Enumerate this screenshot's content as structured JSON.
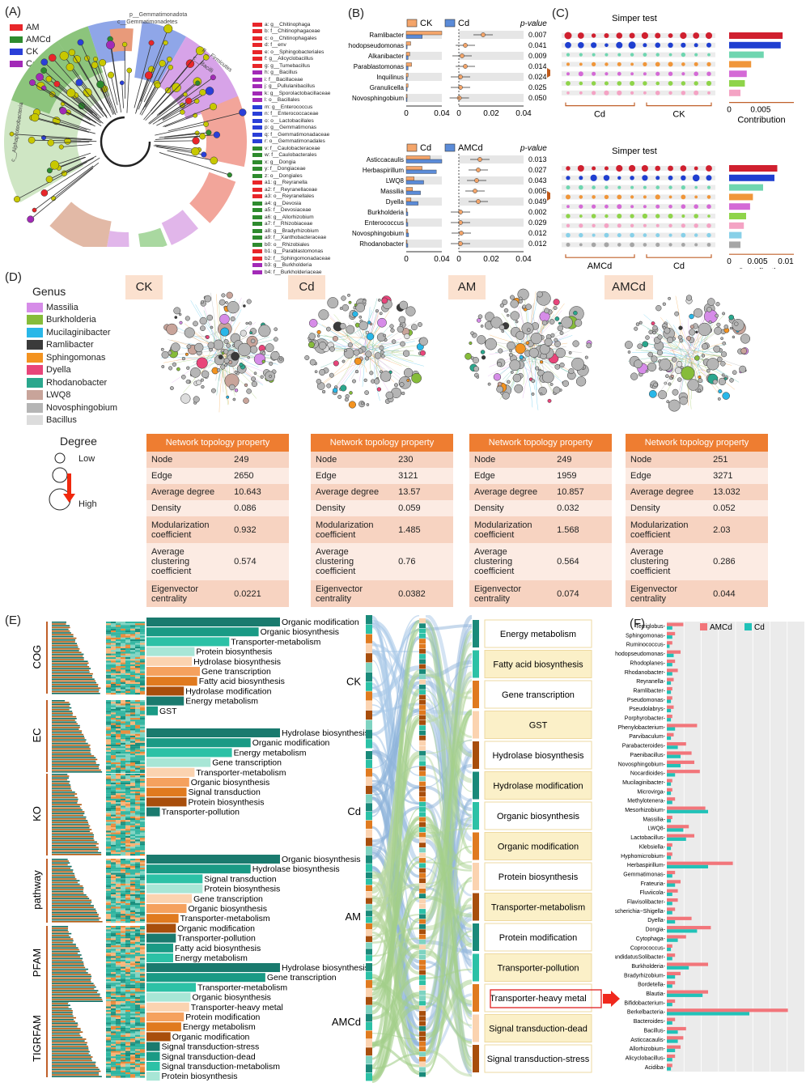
{
  "panels": {
    "A": "(A)",
    "B": "(B)",
    "C": "(C)",
    "D": "(D)",
    "E": "(E)",
    "F": "(F)"
  },
  "colors": {
    "AM": "#e8262a",
    "AMCd": "#2e8b2e",
    "CK": "#2a3fd8",
    "Cd": "#a22ab7",
    "orange": "#ee7d31",
    "blue": "#5b8bd8",
    "teal": "#1a8a7a",
    "dark_orange": "#b34c0e"
  },
  "panelA": {
    "legend": [
      {
        "label": "AM",
        "color": "#e8262a"
      },
      {
        "label": "AMCd",
        "color": "#2e8b2e"
      },
      {
        "label": "CK",
        "color": "#2a3fd8"
      },
      {
        "label": "Cd",
        "color": "#a22ab7"
      }
    ],
    "ring_labels": [
      "p__Gemmatimonadota",
      "c__Gemmatimonadetes",
      "p__Firmicutes",
      "c__Bacilli",
      "c__Alphaproteobacteria"
    ],
    "taxa": [
      {
        "t": "a: g__Chitinophaga",
        "c": "#e8262a"
      },
      {
        "t": "b: f__Chitinophagaceae",
        "c": "#e8262a"
      },
      {
        "t": "c: o__Chitinophagales",
        "c": "#e8262a"
      },
      {
        "t": "d: f__env",
        "c": "#e8262a"
      },
      {
        "t": "e: o__Sphingobacteriales",
        "c": "#e8262a"
      },
      {
        "t": "f: g__Alicyclobacillus",
        "c": "#e8262a"
      },
      {
        "t": "g: g__Tumebacillus",
        "c": "#e8262a"
      },
      {
        "t": "h: g__Bacillus",
        "c": "#a22ab7"
      },
      {
        "t": "i: f__Bacillaceae",
        "c": "#a22ab7"
      },
      {
        "t": "j: g__Pullulanibacillus",
        "c": "#a22ab7"
      },
      {
        "t": "k: g__Sporolactobacillaceae",
        "c": "#a22ab7"
      },
      {
        "t": "l: o__Bacillales",
        "c": "#a22ab7"
      },
      {
        "t": "m: g__Enterococcus",
        "c": "#2a3fd8"
      },
      {
        "t": "n: f__Enterococcaceae",
        "c": "#2a3fd8"
      },
      {
        "t": "o: o__Lactobacillales",
        "c": "#2a3fd8"
      },
      {
        "t": "p: g__Gemmatimonas",
        "c": "#2a3fd8"
      },
      {
        "t": "q: f__Gemmatimonadaceae",
        "c": "#2a3fd8"
      },
      {
        "t": "r: o__Gemmatimonadales",
        "c": "#2a3fd8"
      },
      {
        "t": "v: f__Caulobacteraceae",
        "c": "#2e8b2e"
      },
      {
        "t": "w: f__Caulobacterales",
        "c": "#2e8b2e"
      },
      {
        "t": "x: g__Dongia",
        "c": "#2e8b2e"
      },
      {
        "t": "y: f__Dongiaceae",
        "c": "#2e8b2e"
      },
      {
        "t": "z: o__Dongiales",
        "c": "#2e8b2e"
      },
      {
        "t": "a1: g__Reyranella",
        "c": "#e8262a"
      },
      {
        "t": "a2: f__Reyranellaceae",
        "c": "#e8262a"
      },
      {
        "t": "a3: o__Reyranellales",
        "c": "#e8262a"
      },
      {
        "t": "a4: g__Devosia",
        "c": "#2e8b2e"
      },
      {
        "t": "a5: f__Devosiaceae",
        "c": "#2e8b2e"
      },
      {
        "t": "a6: g__Allorhizobium",
        "c": "#2e8b2e"
      },
      {
        "t": "a7: f__Rhizobiaceae",
        "c": "#2e8b2e"
      },
      {
        "t": "a8: g__Bradyrhizobium",
        "c": "#2e8b2e"
      },
      {
        "t": "a9: f__Xanthobacteraceae",
        "c": "#2e8b2e"
      },
      {
        "t": "b0: o__Rhizobiales",
        "c": "#2e8b2e"
      },
      {
        "t": "b1: g__Parablastomonas",
        "c": "#e8262a"
      },
      {
        "t": "b2: f__Sphingomonadaceae",
        "c": "#e8262a"
      },
      {
        "t": "b3: g__Burkholderia",
        "c": "#a22ab7"
      },
      {
        "t": "b4: f__Burkholderiaceae",
        "c": "#a22ab7"
      }
    ]
  },
  "panelB": {
    "top": {
      "legend": [
        "CK",
        "Cd"
      ],
      "pvalue_header": "p-value",
      "genera": [
        "Ramlibacter",
        "Rhodopseudomonas",
        "Alkanibacter",
        "Parablastomonas",
        "Inquilinus",
        "Granulicella",
        "Novosphingobium"
      ],
      "bars1": [
        0.04,
        0.005,
        0.004,
        0.006,
        0.002,
        0.002,
        0.001
      ],
      "bars2": [
        0.018,
        0.001,
        0.002,
        0.002,
        0.001,
        0.001,
        0.0008
      ],
      "diff": [
        0.015,
        0.004,
        0.002,
        0.004,
        0.001,
        0.001,
        0.0003
      ],
      "pvalues": [
        "0.007",
        "0.041",
        "0.009",
        "0.014",
        "0.024",
        "0.025",
        "0.050"
      ],
      "xticks_left": [
        "0",
        "0.04"
      ],
      "xticks_right": [
        "0",
        "0.02",
        "0.04"
      ]
    },
    "bottom": {
      "legend": [
        "Cd",
        "AMCd"
      ],
      "pvalue_header": "p-value",
      "genera": [
        "Asticcacaulis",
        "Herbaspirillum",
        "LWQ8",
        "Massilia",
        "Dyella",
        "Burkholderia",
        "Enterococcus",
        "Novosphingobium",
        "Rhodanobacter"
      ],
      "bars1": [
        0.03,
        0.02,
        0.01,
        0.008,
        0.006,
        0.001,
        0.001,
        0.002,
        0.001
      ],
      "bars2": [
        0.045,
        0.038,
        0.022,
        0.018,
        0.015,
        0.002,
        0.002,
        0.003,
        0.002
      ],
      "diff": [
        0.013,
        0.012,
        0.011,
        0.01,
        0.012,
        0.001,
        0.001,
        0.0015,
        0.001
      ],
      "pvalues": [
        "0.013",
        "0.027",
        "0.043",
        "0.005",
        "0.049",
        "0.002",
        "0.029",
        "0.012",
        "0.012"
      ],
      "xticks_left": [
        "0",
        "0.04"
      ],
      "xticks_right": [
        "0",
        "0.02",
        "0.04"
      ]
    }
  },
  "panelC": {
    "top": {
      "title": "Simper test",
      "groups": [
        "Cd",
        "CK"
      ],
      "xlabel": "Contribution",
      "xticks": [
        "0",
        "0.005"
      ],
      "bars": [
        0.0085,
        0.0082,
        0.0055,
        0.0035,
        0.0028,
        0.0025,
        0.0018
      ],
      "colors": [
        "#d0202f",
        "#1f3fd0",
        "#6fd6b0",
        "#f0963a",
        "#d46ad6",
        "#8fd44a",
        "#f4a3c4"
      ]
    },
    "bottom": {
      "title": "Simper test",
      "groups": [
        "AMCd",
        "Cd"
      ],
      "xlabel": "Contribution",
      "xticks": [
        "0",
        "0.005",
        "0.01"
      ],
      "bars": [
        0.0085,
        0.008,
        0.006,
        0.0042,
        0.0037,
        0.003,
        0.0026,
        0.0022,
        0.002
      ],
      "colors": [
        "#d0202f",
        "#1f3fd0",
        "#6fd6b0",
        "#f0963a",
        "#d46ad6",
        "#8fd44a",
        "#f4a3c4",
        "#88d0e8",
        "#a6a6a6"
      ]
    }
  },
  "panelD": {
    "genus_title": "Genus",
    "genus_legend": [
      {
        "label": "Massilia",
        "color": "#d68ce8"
      },
      {
        "label": "Burkholderia",
        "color": "#86bc3a"
      },
      {
        "label": "Mucilaginibacter",
        "color": "#29b7e8"
      },
      {
        "label": "Ramlibacter",
        "color": "#3a3a3a"
      },
      {
        "label": "Sphingomonas",
        "color": "#f39320"
      },
      {
        "label": "Dyella",
        "color": "#e8457a"
      },
      {
        "label": "Rhodanobacter",
        "color": "#2aa78d"
      },
      {
        "label": "LWQ8",
        "color": "#c8a49a"
      },
      {
        "label": "Novosphingobium",
        "color": "#b5b5b5"
      },
      {
        "label": "Bacillus",
        "color": "#dcdcdc"
      }
    ],
    "degree_title": "Degree",
    "degree_low": "Low",
    "degree_high": "High",
    "networks": [
      "CK",
      "Cd",
      "AM",
      "AMCd"
    ],
    "table_header": "Network topology property",
    "row_labels": [
      "Node",
      "Edge",
      "Average degree",
      "Density",
      "Modularization coefficient",
      "Average clustering coefficient",
      "Eigenvector centrality"
    ],
    "values": [
      [
        "249",
        "2650",
        "10.643",
        "0.086",
        "0.932",
        "0.574",
        "0.0221"
      ],
      [
        "230",
        "3121",
        "13.57",
        "0.059",
        "1.485",
        "0.76",
        "0.0382"
      ],
      [
        "249",
        "1959",
        "10.857",
        "0.032",
        "1.568",
        "0.564",
        "0.074"
      ],
      [
        "251",
        "3271",
        "13.032",
        "0.052",
        "2.03",
        "0.286",
        "0.044"
      ]
    ]
  },
  "panelE": {
    "databases": [
      "COG",
      "EC",
      "KO",
      "pathway",
      "PFAM",
      "TIGRFAM"
    ],
    "groups": [
      "CK",
      "Cd",
      "AM",
      "AMCd"
    ],
    "bar_groups": [
      {
        "items": [
          {
            "l": "Organic modification",
            "v": 1.0,
            "c": "#1a7a6e"
          },
          {
            "l": "Organic biosynthesis",
            "v": 0.84,
            "c": "#1a9a85"
          },
          {
            "l": "Transporter-metabolism",
            "v": 0.62,
            "c": "#2cc1a6"
          },
          {
            "l": "Protein biosynthesis",
            "v": 0.36,
            "c": "#a8e6d6"
          },
          {
            "l": "Hydrolase biosynthesis",
            "v": 0.34,
            "c": "#fbd3b0"
          },
          {
            "l": "Gene transcription",
            "v": 0.4,
            "c": "#f5a15e"
          },
          {
            "l": "Fatty acid biosynthesis",
            "v": 0.38,
            "c": "#e07a1f"
          },
          {
            "l": "Hydrolase modification",
            "v": 0.28,
            "c": "#a84e0c"
          },
          {
            "l": "Energy metabolism",
            "v": 0.28,
            "c": "#1a7a6e"
          },
          {
            "l": "GST",
            "v": 0.08,
            "c": "#1a9a85"
          }
        ]
      },
      {
        "items": [
          {
            "l": "Hydrolase biosynthesis",
            "v": 1.0,
            "c": "#1a7a6e"
          },
          {
            "l": "Organic modification",
            "v": 0.78,
            "c": "#1a9a85"
          },
          {
            "l": "Energy metabolism",
            "v": 0.64,
            "c": "#2cc1a6"
          },
          {
            "l": "Gene transcription",
            "v": 0.48,
            "c": "#a8e6d6"
          },
          {
            "l": "Transporter-metabolism",
            "v": 0.36,
            "c": "#fbd3b0"
          },
          {
            "l": "Organic biosynthesis",
            "v": 0.32,
            "c": "#f5a15e"
          },
          {
            "l": "Signal transduction",
            "v": 0.3,
            "c": "#e07a1f"
          },
          {
            "l": "Protein biosynthesis",
            "v": 0.3,
            "c": "#a84e0c"
          },
          {
            "l": "Transporter-pollution",
            "v": 0.1,
            "c": "#1a7a6e"
          }
        ]
      },
      {
        "items": [
          {
            "l": "Organic biosynthesis",
            "v": 1.0,
            "c": "#1a7a6e"
          },
          {
            "l": "Hydrolase biosynthesis",
            "v": 0.78,
            "c": "#1a9a85"
          },
          {
            "l": "Signal transduction",
            "v": 0.42,
            "c": "#2cc1a6"
          },
          {
            "l": "Protein biosynthesis",
            "v": 0.42,
            "c": "#a8e6d6"
          },
          {
            "l": "Gene transcription",
            "v": 0.34,
            "c": "#fbd3b0"
          },
          {
            "l": "Organic biosynthesis",
            "v": 0.3,
            "c": "#f5a15e"
          },
          {
            "l": "Transporter-metabolism",
            "v": 0.24,
            "c": "#e07a1f"
          },
          {
            "l": "Organic modification",
            "v": 0.22,
            "c": "#a84e0c"
          },
          {
            "l": "Transporter-pollution",
            "v": 0.22,
            "c": "#1a7a6e"
          },
          {
            "l": "Fatty acid biosynthesis",
            "v": 0.2,
            "c": "#1a9a85"
          },
          {
            "l": "Energy metabolism",
            "v": 0.2,
            "c": "#2cc1a6"
          }
        ]
      },
      {
        "items": [
          {
            "l": "Hydrolase biosynthesis",
            "v": 1.0,
            "c": "#1a7a6e"
          },
          {
            "l": "Gene transcription",
            "v": 0.89,
            "c": "#1a9a85"
          },
          {
            "l": "Transporter-metabolism",
            "v": 0.37,
            "c": "#2cc1a6"
          },
          {
            "l": "Organic biosynthesis",
            "v": 0.33,
            "c": "#a8e6d6"
          },
          {
            "l": "Transporter-heavy metal",
            "v": 0.32,
            "c": "#fbd3b0"
          },
          {
            "l": "Protein modification",
            "v": 0.28,
            "c": "#f5a15e"
          },
          {
            "l": "Energy metabolism",
            "v": 0.26,
            "c": "#e07a1f"
          },
          {
            "l": "Organic modification",
            "v": 0.18,
            "c": "#a84e0c"
          },
          {
            "l": "Signal transduction-stress",
            "v": 0.1,
            "c": "#1a7a6e"
          },
          {
            "l": "Signal transduction-dead",
            "v": 0.1,
            "c": "#1a9a85"
          },
          {
            "l": "Signal transduction-metabolism",
            "v": 0.1,
            "c": "#2cc1a6"
          },
          {
            "l": "Protein biosynthesis",
            "v": 0.1,
            "c": "#a8e6d6"
          }
        ]
      }
    ],
    "functions": [
      "Energy metabolism",
      "Fatty acid biosynthesis",
      "Gene transcription",
      "GST",
      "Hydrolase biosynthesis",
      "Hydrolase modification",
      "Organic biosynthesis",
      "Organic modification",
      "Protein biosynthesis",
      "Transporter-metabolism",
      "Protein modification",
      "Transporter-pollution",
      "Transporter-heavy metal",
      "Signal transduction-dead",
      "Signal transduction-stress"
    ],
    "highlighted_function": "Transporter-heavy metal"
  },
  "panelF": {
    "legend": [
      {
        "label": "AMCd",
        "color": "#f2757a"
      },
      {
        "label": "Cd",
        "color": "#21c2b8"
      }
    ],
    "genera": [
      "Terriglobus",
      "Sphingomonas",
      "Ruminococcus",
      "Rhodopseudomonas",
      "Rhodoplanes",
      "Rhodanobacter",
      "Reyranella",
      "Ramlibacter",
      "Pseudomonas",
      "Pseudolabrys",
      "Porphyrobacter",
      "Phenylobacterium",
      "Parvibaculum",
      "Parabacteroides",
      "Paenibacillus",
      "Novosphingobium",
      "Nocardioides",
      "Mucilaginibacter",
      "Microvirga",
      "Methylotenera",
      "Mesorhizobium",
      "Massilia",
      "LWQ8",
      "Lactobacillus",
      "Klebsiella",
      "Hyphomicrobium",
      "Herbaspirillum",
      "Gemmatimonas",
      "Frateuria",
      "Fluviicola",
      "Flavisolibacter",
      "Escherichia−Shigella",
      "Dyella",
      "Dongia",
      "Cytophaga",
      "Coprococcus",
      "CandidatusSolibacter",
      "Burkholderia",
      "Bradyrhizobium",
      "Bordetella",
      "Blautia",
      "Bifidobacterium",
      "Berkelbacteria",
      "Bacteroides",
      "Bacillus",
      "Asticcacaulis",
      "Allorhizobium",
      "Alicyclobacillus",
      "Acidiba"
    ],
    "AMCd": [
      0.12,
      0.06,
      0.04,
      0.1,
      0.06,
      0.08,
      0.05,
      0.04,
      0.04,
      0.05,
      0.04,
      0.22,
      0.05,
      0.14,
      0.18,
      0.2,
      0.24,
      0.04,
      0.04,
      0.06,
      0.28,
      0.04,
      0.16,
      0.2,
      0.04,
      0.04,
      0.48,
      0.06,
      0.1,
      0.08,
      0.08,
      0.06,
      0.18,
      0.32,
      0.14,
      0.04,
      0.06,
      0.3,
      0.1,
      0.06,
      0.3,
      0.06,
      0.88,
      0.06,
      0.14,
      0.12,
      0.1,
      0.06,
      0.04
    ],
    "Cd": [
      0.04,
      0.04,
      0.02,
      0.05,
      0.04,
      0.04,
      0.03,
      0.03,
      0.03,
      0.03,
      0.03,
      0.06,
      0.03,
      0.08,
      0.1,
      0.1,
      0.06,
      0.03,
      0.03,
      0.04,
      0.3,
      0.03,
      0.12,
      0.14,
      0.03,
      0.03,
      0.3,
      0.04,
      0.06,
      0.04,
      0.04,
      0.04,
      0.06,
      0.22,
      0.08,
      0.03,
      0.04,
      0.16,
      0.06,
      0.04,
      0.26,
      0.04,
      0.6,
      0.04,
      0.08,
      0.08,
      0.06,
      0.04,
      0.03
    ]
  }
}
